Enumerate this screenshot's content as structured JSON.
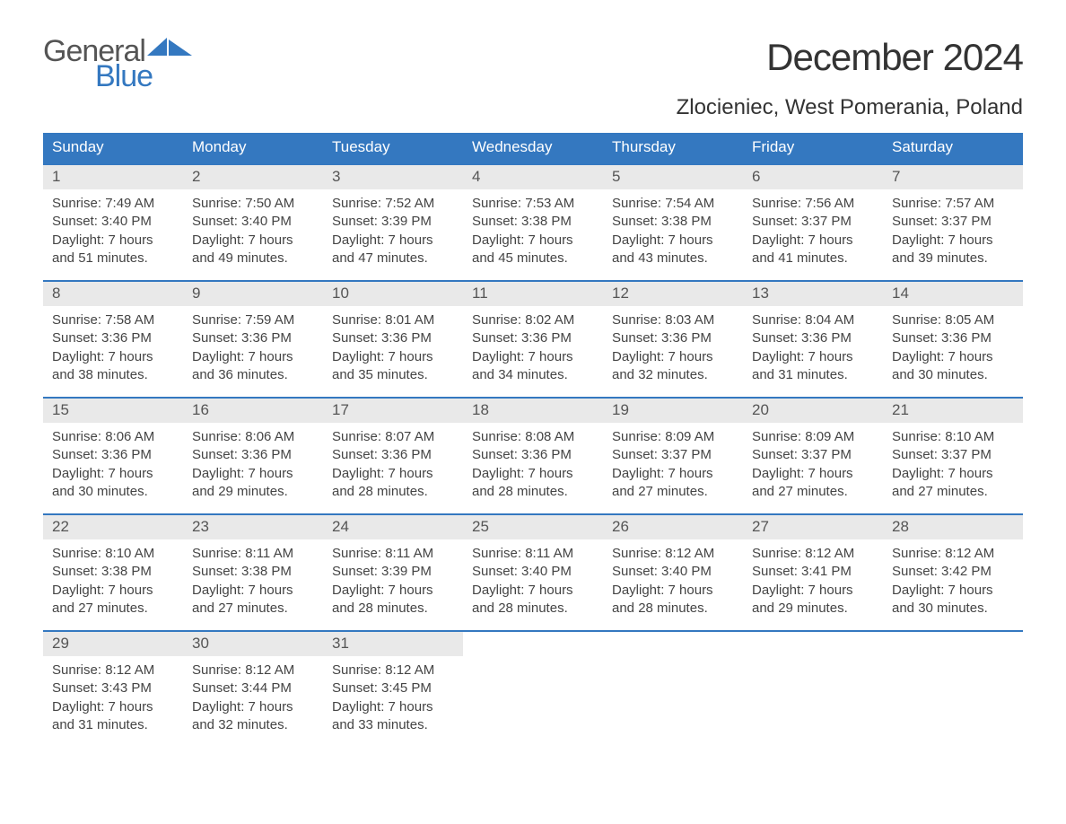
{
  "brand": {
    "part1": "General",
    "part2": "Blue",
    "logo_color": "#3478c0",
    "text_color": "#555555"
  },
  "title": {
    "month": "December 2024",
    "location": "Zlocieniec, West Pomerania, Poland"
  },
  "colors": {
    "accent": "#3478c0",
    "header_bg": "#e9e9e9",
    "text": "#444444",
    "white": "#ffffff"
  },
  "weekdays": [
    "Sunday",
    "Monday",
    "Tuesday",
    "Wednesday",
    "Thursday",
    "Friday",
    "Saturday"
  ],
  "font": {
    "family": "Arial",
    "daynum_size": 17,
    "detail_size": 15,
    "month_size": 42,
    "location_size": 24
  },
  "layout": {
    "columns": 7,
    "rows": 5,
    "first_weekday_index": 0
  },
  "days": [
    {
      "n": "1",
      "sunrise": "7:49 AM",
      "sunset": "3:40 PM",
      "daylight": "7 hours and 51 minutes."
    },
    {
      "n": "2",
      "sunrise": "7:50 AM",
      "sunset": "3:40 PM",
      "daylight": "7 hours and 49 minutes."
    },
    {
      "n": "3",
      "sunrise": "7:52 AM",
      "sunset": "3:39 PM",
      "daylight": "7 hours and 47 minutes."
    },
    {
      "n": "4",
      "sunrise": "7:53 AM",
      "sunset": "3:38 PM",
      "daylight": "7 hours and 45 minutes."
    },
    {
      "n": "5",
      "sunrise": "7:54 AM",
      "sunset": "3:38 PM",
      "daylight": "7 hours and 43 minutes."
    },
    {
      "n": "6",
      "sunrise": "7:56 AM",
      "sunset": "3:37 PM",
      "daylight": "7 hours and 41 minutes."
    },
    {
      "n": "7",
      "sunrise": "7:57 AM",
      "sunset": "3:37 PM",
      "daylight": "7 hours and 39 minutes."
    },
    {
      "n": "8",
      "sunrise": "7:58 AM",
      "sunset": "3:36 PM",
      "daylight": "7 hours and 38 minutes."
    },
    {
      "n": "9",
      "sunrise": "7:59 AM",
      "sunset": "3:36 PM",
      "daylight": "7 hours and 36 minutes."
    },
    {
      "n": "10",
      "sunrise": "8:01 AM",
      "sunset": "3:36 PM",
      "daylight": "7 hours and 35 minutes."
    },
    {
      "n": "11",
      "sunrise": "8:02 AM",
      "sunset": "3:36 PM",
      "daylight": "7 hours and 34 minutes."
    },
    {
      "n": "12",
      "sunrise": "8:03 AM",
      "sunset": "3:36 PM",
      "daylight": "7 hours and 32 minutes."
    },
    {
      "n": "13",
      "sunrise": "8:04 AM",
      "sunset": "3:36 PM",
      "daylight": "7 hours and 31 minutes."
    },
    {
      "n": "14",
      "sunrise": "8:05 AM",
      "sunset": "3:36 PM",
      "daylight": "7 hours and 30 minutes."
    },
    {
      "n": "15",
      "sunrise": "8:06 AM",
      "sunset": "3:36 PM",
      "daylight": "7 hours and 30 minutes."
    },
    {
      "n": "16",
      "sunrise": "8:06 AM",
      "sunset": "3:36 PM",
      "daylight": "7 hours and 29 minutes."
    },
    {
      "n": "17",
      "sunrise": "8:07 AM",
      "sunset": "3:36 PM",
      "daylight": "7 hours and 28 minutes."
    },
    {
      "n": "18",
      "sunrise": "8:08 AM",
      "sunset": "3:36 PM",
      "daylight": "7 hours and 28 minutes."
    },
    {
      "n": "19",
      "sunrise": "8:09 AM",
      "sunset": "3:37 PM",
      "daylight": "7 hours and 27 minutes."
    },
    {
      "n": "20",
      "sunrise": "8:09 AM",
      "sunset": "3:37 PM",
      "daylight": "7 hours and 27 minutes."
    },
    {
      "n": "21",
      "sunrise": "8:10 AM",
      "sunset": "3:37 PM",
      "daylight": "7 hours and 27 minutes."
    },
    {
      "n": "22",
      "sunrise": "8:10 AM",
      "sunset": "3:38 PM",
      "daylight": "7 hours and 27 minutes."
    },
    {
      "n": "23",
      "sunrise": "8:11 AM",
      "sunset": "3:38 PM",
      "daylight": "7 hours and 27 minutes."
    },
    {
      "n": "24",
      "sunrise": "8:11 AM",
      "sunset": "3:39 PM",
      "daylight": "7 hours and 28 minutes."
    },
    {
      "n": "25",
      "sunrise": "8:11 AM",
      "sunset": "3:40 PM",
      "daylight": "7 hours and 28 minutes."
    },
    {
      "n": "26",
      "sunrise": "8:12 AM",
      "sunset": "3:40 PM",
      "daylight": "7 hours and 28 minutes."
    },
    {
      "n": "27",
      "sunrise": "8:12 AM",
      "sunset": "3:41 PM",
      "daylight": "7 hours and 29 minutes."
    },
    {
      "n": "28",
      "sunrise": "8:12 AM",
      "sunset": "3:42 PM",
      "daylight": "7 hours and 30 minutes."
    },
    {
      "n": "29",
      "sunrise": "8:12 AM",
      "sunset": "3:43 PM",
      "daylight": "7 hours and 31 minutes."
    },
    {
      "n": "30",
      "sunrise": "8:12 AM",
      "sunset": "3:44 PM",
      "daylight": "7 hours and 32 minutes."
    },
    {
      "n": "31",
      "sunrise": "8:12 AM",
      "sunset": "3:45 PM",
      "daylight": "7 hours and 33 minutes."
    }
  ],
  "labels": {
    "sunrise_prefix": "Sunrise: ",
    "sunset_prefix": "Sunset: ",
    "daylight_prefix": "Daylight: "
  }
}
